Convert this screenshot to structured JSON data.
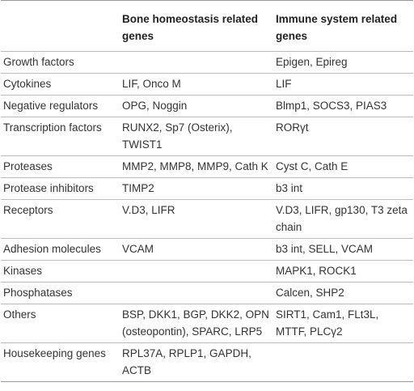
{
  "table": {
    "header": [
      null,
      "Bone homeostasis related genes",
      "Immune system related genes"
    ],
    "rows": [
      [
        "Growth factors",
        null,
        "Epigen, Epireg"
      ],
      [
        "Cytokines",
        "LIF, Onco M",
        "LIF"
      ],
      [
        "Negative regulators",
        "OPG, Noggin",
        "Blmp1, SOCS3, PIAS3"
      ],
      [
        "Transcription factors",
        "RUNX2, Sp7 (Osterix), TWIST1",
        "RORγt"
      ],
      [
        "Proteases",
        "MMP2, MMP8, MMP9, Cath K",
        "Cyst C, Cath E"
      ],
      [
        "Protease inhibitors",
        "TIMP2",
        "b3 int"
      ],
      [
        "Receptors",
        "V.D3, LIFR",
        "V.D3, LIFR, gp130, T3 zeta chain"
      ],
      [
        "Adhesion molecules",
        "VCAM",
        "b3 int, SELL, VCAM"
      ],
      [
        "Kinases",
        null,
        "MAPK1, ROCK1"
      ],
      [
        "Phosphatases",
        null,
        "Calcen, SHP2"
      ],
      [
        "Others",
        "BSP, DKK1, BGP, DKK2, OPN (osteopontin), SPARC, LRP5",
        "SIRT1, Cam1, FLt3L, MTTF, PLCγ2"
      ],
      [
        "Housekeeping genes",
        "RPL37A, RPLP1, GAPDH, ACTB",
        null
      ]
    ]
  }
}
